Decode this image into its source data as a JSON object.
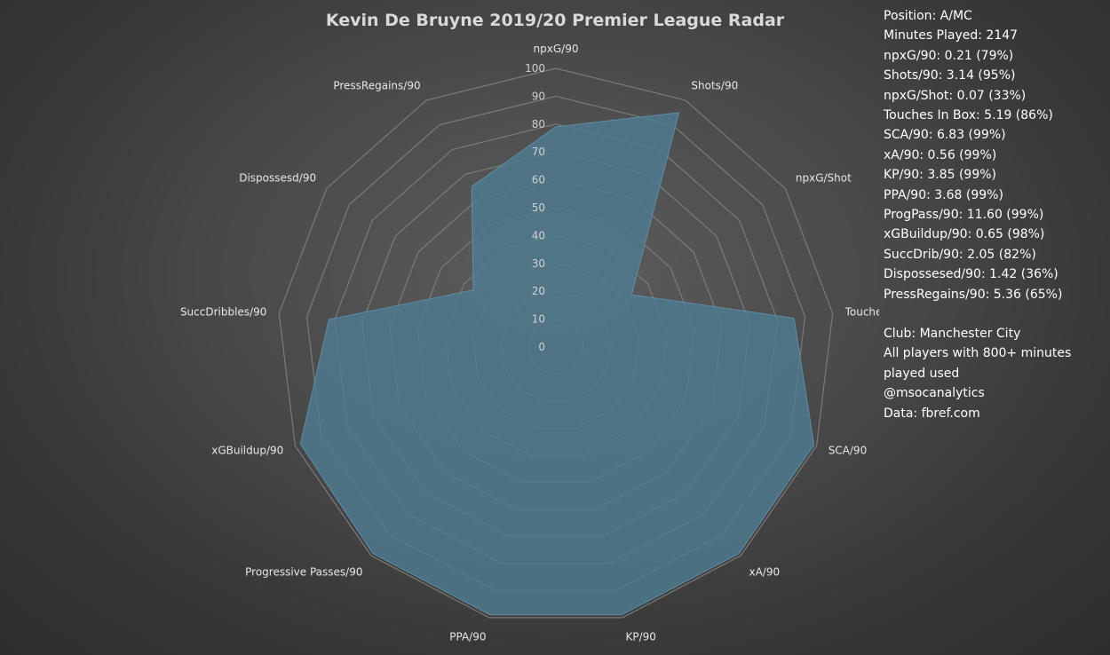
{
  "chart_data": {
    "type": "radar",
    "title": "Kevin De Bruyne 2019/20 Premier League Radar",
    "categories": [
      "npxG/90",
      "Shots/90",
      "npxG/Shot",
      "Touches In Box",
      "SCA/90",
      "xA/90",
      "KP/90",
      "PPA/90",
      "Progressive Passes/90",
      "xGBuildup/90",
      "SuccDribbles/90",
      "Dispossesd/90",
      "PressRegains/90"
    ],
    "series": [
      {
        "values": [
          79,
          95,
          33,
          86,
          99,
          99,
          99,
          99,
          99,
          98,
          82,
          36,
          65
        ]
      }
    ],
    "rlim": [
      0,
      100
    ],
    "ticks": [
      0,
      10,
      20,
      30,
      40,
      50,
      60,
      70,
      80,
      90,
      100
    ],
    "tick_labels": [
      "0",
      "10",
      "20",
      "30",
      "40",
      "50",
      "60",
      "70",
      "80",
      "90",
      "100"
    ],
    "grid": true,
    "colors": {
      "fill": "#4e7b91",
      "grid": "#7a7a7a",
      "background": "#4a4a4a"
    }
  },
  "stats_panel": [
    "Position: A/MC",
    "Minutes Played: 2147",
    "npxG/90: 0.21 (79%)",
    "Shots/90: 3.14 (95%)",
    "npxG/Shot: 0.07 (33%)",
    "Touches In Box: 5.19 (86%)",
    "SCA/90: 6.83 (99%)",
    "xA/90: 0.56 (99%)",
    "KP/90: 3.85 (99%)",
    "PPA/90: 3.68 (99%)",
    "ProgPass/90: 11.60 (99%)",
    "xGBuildup/90: 0.65 (98%)",
    "SuccDrib/90: 2.05 (82%)",
    "Dispossesed/90: 1.42 (36%)",
    "PressRegains/90: 5.36 (65%)"
  ],
  "info_panel": [
    "Club: Manchester City",
    "All players with 800+ minutes",
    "played used",
    "@msocanalytics",
    "Data: fbref.com"
  ]
}
